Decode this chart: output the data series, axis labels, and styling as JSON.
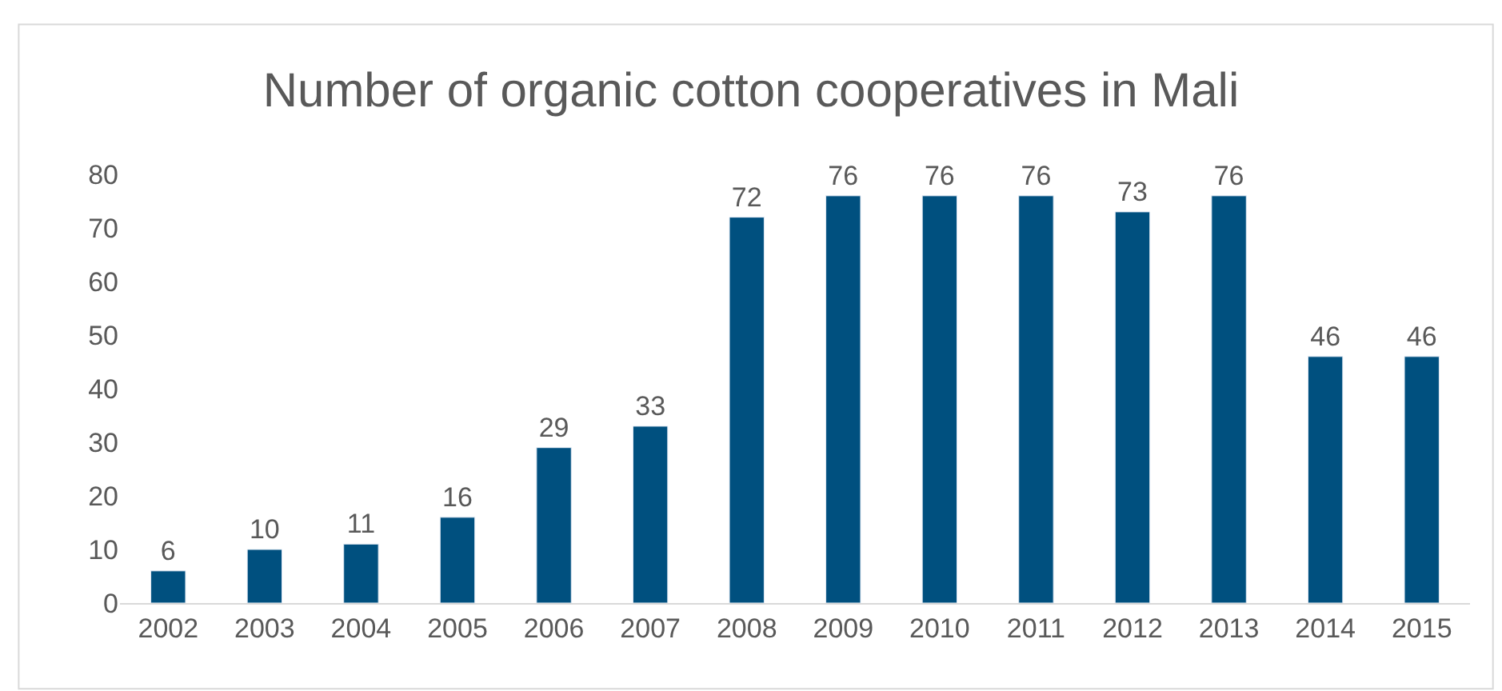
{
  "chart_data": {
    "type": "bar",
    "title": "Number of organic cotton cooperatives in Mali",
    "categories": [
      "2002",
      "2003",
      "2004",
      "2005",
      "2006",
      "2007",
      "2008",
      "2009",
      "2010",
      "2011",
      "2012",
      "2013",
      "2014",
      "2015"
    ],
    "values": [
      6,
      10,
      11,
      16,
      29,
      33,
      72,
      76,
      76,
      76,
      73,
      76,
      46,
      46
    ],
    "color": "#00507f",
    "ylim": [
      0,
      80
    ],
    "yticks": [
      0,
      10,
      20,
      30,
      40,
      50,
      60,
      70,
      80
    ],
    "data_labels": true,
    "legend": false
  }
}
